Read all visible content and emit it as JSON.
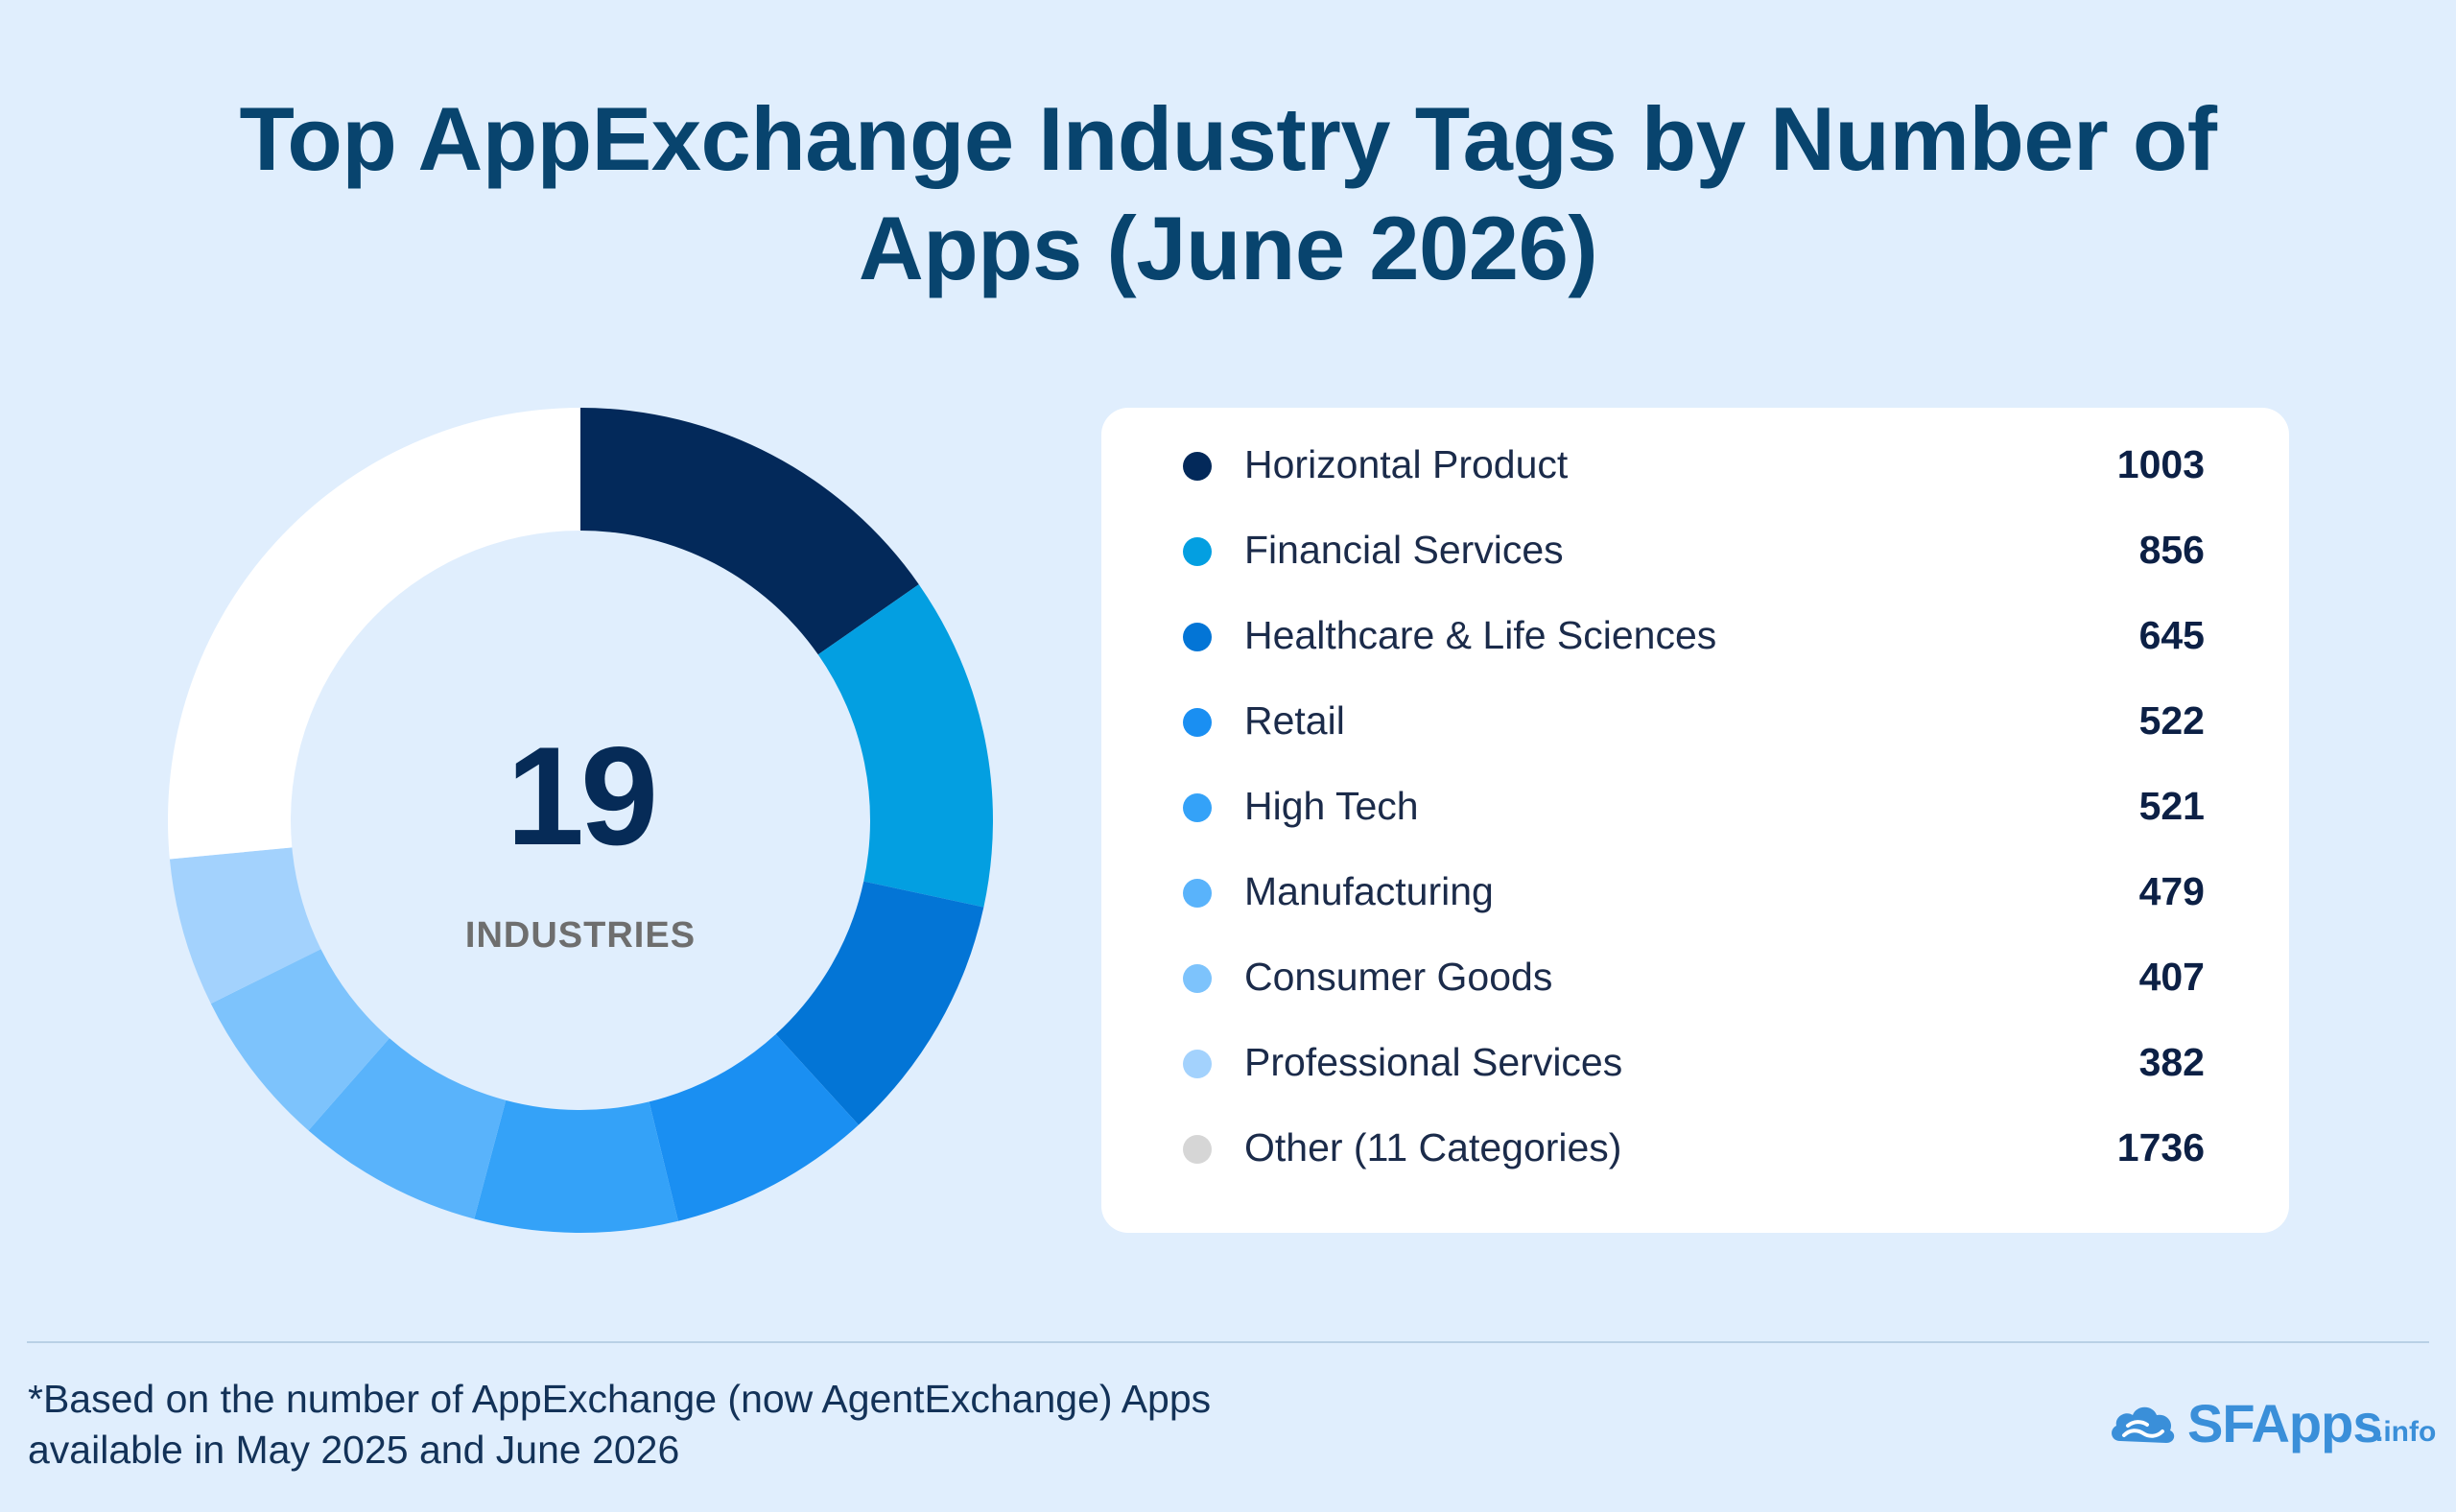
{
  "title": "Top AppExchange Industry Tags by Number of Apps (June 2026)",
  "center": {
    "number": "19",
    "label": "INDUSTRIES"
  },
  "chart_data": {
    "type": "pie",
    "style": "donut",
    "title": "Top AppExchange Industry Tags by Number of Apps (June 2026)",
    "categories": [
      "Horizontal Product",
      "Financial Services",
      "Healthcare & Life Sciences",
      "Retail",
      "High Tech",
      "Manufacturing",
      "Consumer Goods",
      "Professional Services",
      "Other (11 Categories)"
    ],
    "values": [
      1003,
      856,
      645,
      522,
      521,
      479,
      407,
      382,
      1736
    ],
    "colors": [
      "#03295a",
      "#039fe1",
      "#0375d6",
      "#1a8ff2",
      "#34a2f8",
      "#59b3fb",
      "#7dc3fc",
      "#a3d2fd",
      "#ffffff"
    ],
    "legend_colors": [
      "#03295a",
      "#039fe1",
      "#0375d6",
      "#1a8ff2",
      "#34a2f8",
      "#59b3fb",
      "#7dc3fc",
      "#a3d2fd",
      "#d6d6d6"
    ],
    "legend_position": "right"
  },
  "footnote": {
    "line1": "*Based on the number of AppExchange (now AgentExchange) Apps",
    "line2": "available in May 2025 and June 2026"
  },
  "logo": {
    "text": "SFApps",
    "suffix": ".info",
    "icon": "cloud-icon",
    "color": "#3a8fd9"
  }
}
